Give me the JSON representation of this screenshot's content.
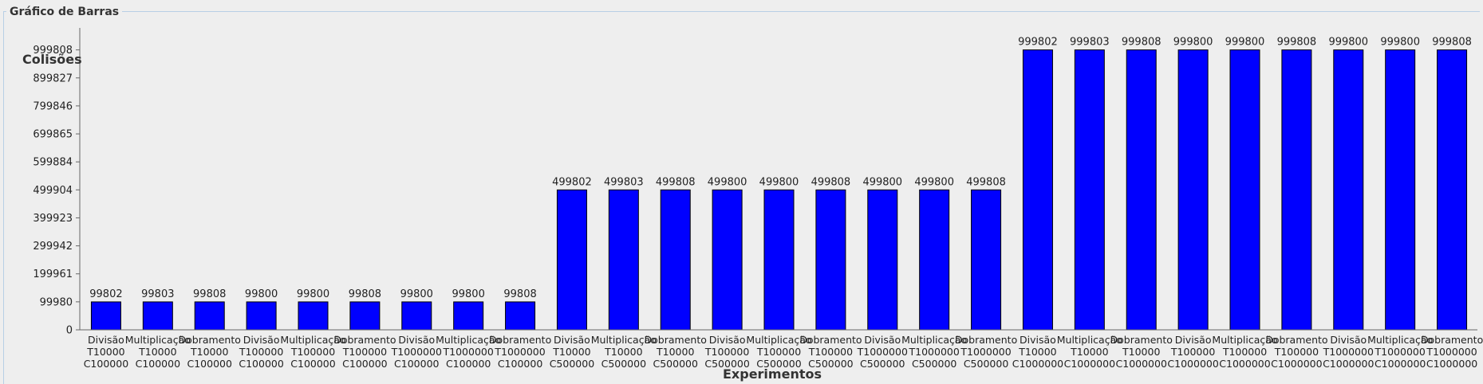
{
  "panel": {
    "title": "Gráfico de Barras"
  },
  "colors": {
    "bar": "#0000ff",
    "bar_stroke": "#000000",
    "axis": "#666666"
  },
  "chart_data": {
    "type": "bar",
    "title": "",
    "xlabel": "Experimentos",
    "ylabel": "Colisões",
    "ylim": [
      0,
      1050000
    ],
    "yticks": [
      0,
      99980,
      199961,
      299942,
      399923,
      499904,
      599884,
      699865,
      799846,
      899827,
      999808
    ],
    "grid": false,
    "legend": "none",
    "categories": [
      [
        "Divisão",
        "T10000",
        "C100000"
      ],
      [
        "Multiplicação",
        "T10000",
        "C100000"
      ],
      [
        "Dobramento",
        "T10000",
        "C100000"
      ],
      [
        "Divisão",
        "T100000",
        "C100000"
      ],
      [
        "Multiplicação",
        "T100000",
        "C100000"
      ],
      [
        "Dobramento",
        "T100000",
        "C100000"
      ],
      [
        "Divisão",
        "T1000000",
        "C100000"
      ],
      [
        "Multiplicação",
        "T1000000",
        "C100000"
      ],
      [
        "Dobramento",
        "T1000000",
        "C100000"
      ],
      [
        "Divisão",
        "T10000",
        "C500000"
      ],
      [
        "Multiplicação",
        "T10000",
        "C500000"
      ],
      [
        "Dobramento",
        "T10000",
        "C500000"
      ],
      [
        "Divisão",
        "T100000",
        "C500000"
      ],
      [
        "Multiplicação",
        "T100000",
        "C500000"
      ],
      [
        "Dobramento",
        "T100000",
        "C500000"
      ],
      [
        "Divisão",
        "T1000000",
        "C500000"
      ],
      [
        "Multiplicação",
        "T1000000",
        "C500000"
      ],
      [
        "Dobramento",
        "T1000000",
        "C500000"
      ],
      [
        "Divisão",
        "T10000",
        "C1000000"
      ],
      [
        "Multiplicação",
        "T10000",
        "C1000000"
      ],
      [
        "Dobramento",
        "T10000",
        "C1000000"
      ],
      [
        "Divisão",
        "T100000",
        "C1000000"
      ],
      [
        "Multiplicação",
        "T100000",
        "C1000000"
      ],
      [
        "Dobramento",
        "T100000",
        "C1000000"
      ],
      [
        "Divisão",
        "T1000000",
        "C1000000"
      ],
      [
        "Multiplicação",
        "T1000000",
        "C1000000"
      ],
      [
        "Dobramento",
        "T1000000",
        "C1000000"
      ]
    ],
    "values": [
      99802,
      99803,
      99808,
      99800,
      99800,
      99808,
      99800,
      99800,
      99808,
      499802,
      499803,
      499808,
      499800,
      499800,
      499808,
      499800,
      499800,
      499808,
      999802,
      999803,
      999808,
      999800,
      999800,
      999808,
      999800,
      999800,
      999808
    ]
  }
}
